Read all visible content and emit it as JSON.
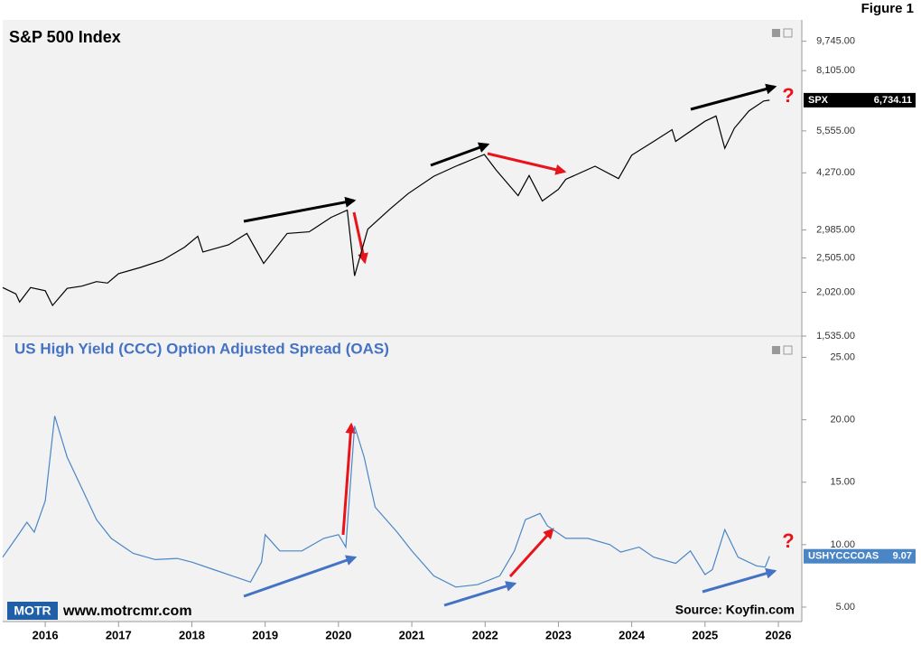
{
  "figure_label": "Figure 1",
  "website": "www.motrcmr.com",
  "logo": "MOTR",
  "source": "Source: Koyfin.com",
  "chart_data": [
    {
      "type": "line",
      "title": "S&P 500 Index",
      "log_scale": true,
      "x": [
        2015.42,
        2015.6,
        2015.65,
        2015.8,
        2016.0,
        2016.1,
        2016.3,
        2016.5,
        2016.7,
        2016.85,
        2017.0,
        2017.3,
        2017.6,
        2017.9,
        2018.08,
        2018.15,
        2018.5,
        2018.75,
        2018.98,
        2019.3,
        2019.6,
        2019.9,
        2020.12,
        2020.22,
        2020.4,
        2020.7,
        2020.95,
        2021.3,
        2021.6,
        2021.99,
        2022.15,
        2022.45,
        2022.6,
        2022.78,
        2023.0,
        2023.1,
        2023.5,
        2023.82,
        2024.0,
        2024.3,
        2024.55,
        2024.6,
        2025.0,
        2025.15,
        2025.27,
        2025.4,
        2025.6,
        2025.8,
        2025.88
      ],
      "series": [
        {
          "name": "SPX",
          "color": "#000000",
          "last_value_label": "6,734.11",
          "values": [
            2080,
            2000,
            1900,
            2080,
            2040,
            1860,
            2070,
            2100,
            2160,
            2140,
            2270,
            2360,
            2470,
            2680,
            2870,
            2600,
            2720,
            2920,
            2420,
            2920,
            2950,
            3230,
            3380,
            2240,
            3000,
            3400,
            3750,
            4180,
            4450,
            4790,
            4350,
            3700,
            4200,
            3580,
            3850,
            4100,
            4450,
            4120,
            4770,
            5200,
            5600,
            5200,
            5900,
            6100,
            4980,
            5650,
            6300,
            6700,
            6734.11
          ]
        }
      ],
      "annotations": [
        "?"
      ],
      "xlim": [
        2015.42,
        2026.32
      ],
      "ylim": [
        1535,
        11140
      ],
      "yticks": [
        {
          "value": 1535,
          "label": "1,535.00"
        },
        {
          "value": 2020,
          "label": "2,020.00"
        },
        {
          "value": 2505,
          "label": "2,505.00"
        },
        {
          "value": 2985,
          "label": "2,985.00"
        },
        {
          "value": 4270,
          "label": "4,270.00"
        },
        {
          "value": 5555,
          "label": "5,555.00"
        },
        {
          "value": 8105,
          "label": "8,105.00"
        },
        {
          "value": 9745,
          "label": "9,745.00"
        }
      ]
    },
    {
      "type": "line",
      "title": "US High Yield (CCC) Option Adjusted Spread (OAS)",
      "x": [
        2015.42,
        2015.6,
        2015.75,
        2015.85,
        2016.0,
        2016.13,
        2016.3,
        2016.5,
        2016.7,
        2016.9,
        2017.2,
        2017.5,
        2017.8,
        2018.0,
        2018.3,
        2018.6,
        2018.8,
        2018.95,
        2019.0,
        2019.2,
        2019.5,
        2019.8,
        2020.0,
        2020.1,
        2020.22,
        2020.35,
        2020.5,
        2020.8,
        2021.0,
        2021.3,
        2021.6,
        2021.9,
        2022.2,
        2022.4,
        2022.55,
        2022.75,
        2022.85,
        2023.1,
        2023.4,
        2023.7,
        2023.85,
        2024.1,
        2024.3,
        2024.6,
        2024.8,
        2025.0,
        2025.1,
        2025.27,
        2025.45,
        2025.7,
        2025.82,
        2025.88
      ],
      "series": [
        {
          "name": "USHYCCCOAS",
          "color": "#4a86c5",
          "values": [
            9.0,
            10.5,
            11.8,
            11.0,
            13.5,
            20.3,
            17,
            14.5,
            12,
            10.5,
            9.3,
            8.8,
            8.9,
            8.6,
            8.0,
            7.4,
            7.0,
            8.6,
            10.8,
            9.5,
            9.5,
            10.5,
            10.8,
            9.8,
            19.5,
            17,
            13,
            11,
            9.5,
            7.5,
            6.6,
            6.8,
            7.5,
            9.5,
            12,
            12.5,
            11.5,
            10.5,
            10.5,
            10,
            9.4,
            9.8,
            9.0,
            8.5,
            9.5,
            7.6,
            8.0,
            11.2,
            9.0,
            8.3,
            8.2,
            9.07
          ]
        }
      ],
      "annotations": [
        "?"
      ],
      "xlim": [
        2015.42,
        2026.32
      ],
      "ylim": [
        3.84,
        26.7
      ],
      "yticks": [
        {
          "value": 5,
          "label": "5.00"
        },
        {
          "value": 10,
          "label": "10.00"
        },
        {
          "value": 15,
          "label": "15.00"
        },
        {
          "value": 20,
          "label": "20.00"
        },
        {
          "value": 25,
          "label": "25.00"
        }
      ],
      "xticks": [
        2016,
        2017,
        2018,
        2019,
        2020,
        2021,
        2022,
        2023,
        2024,
        2025,
        2026
      ]
    }
  ]
}
